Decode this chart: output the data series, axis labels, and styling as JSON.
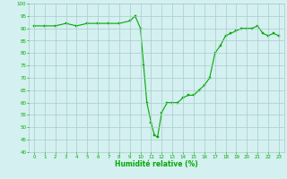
{
  "x": [
    0,
    1,
    2,
    3,
    4,
    5,
    6,
    7,
    8,
    9,
    9.5,
    10,
    10.3,
    10.6,
    11,
    11.3,
    11.6,
    12,
    12.5,
    13,
    13.5,
    14,
    14.5,
    15,
    15.5,
    16,
    16.5,
    17,
    17.5,
    18,
    18.5,
    19,
    19.5,
    20,
    20.5,
    21,
    21.5,
    22,
    22.5,
    23
  ],
  "y": [
    91,
    91,
    91,
    92,
    91,
    92,
    92,
    92,
    92,
    93,
    95,
    90,
    75,
    60,
    52,
    47,
    46,
    56,
    60,
    60,
    60,
    62,
    63,
    63,
    65,
    67,
    70,
    80,
    83,
    87,
    88,
    89,
    90,
    90,
    90,
    91,
    88,
    87,
    88,
    87
  ],
  "xlim": [
    -0.5,
    23.5
  ],
  "ylim": [
    40,
    100
  ],
  "yticks": [
    40,
    45,
    50,
    55,
    60,
    65,
    70,
    75,
    80,
    85,
    90,
    95,
    100
  ],
  "xticks": [
    0,
    1,
    2,
    3,
    4,
    5,
    6,
    7,
    8,
    9,
    10,
    11,
    12,
    13,
    14,
    15,
    16,
    17,
    18,
    19,
    20,
    21,
    22,
    23
  ],
  "xlabel": "Humidité relative (%)",
  "line_color": "#00aa00",
  "marker_color": "#00aa00",
  "bg_color": "#d4f0f0",
  "grid_color": "#aacccc",
  "axis_label_color": "#00aa00",
  "tick_label_color": "#00aa00"
}
